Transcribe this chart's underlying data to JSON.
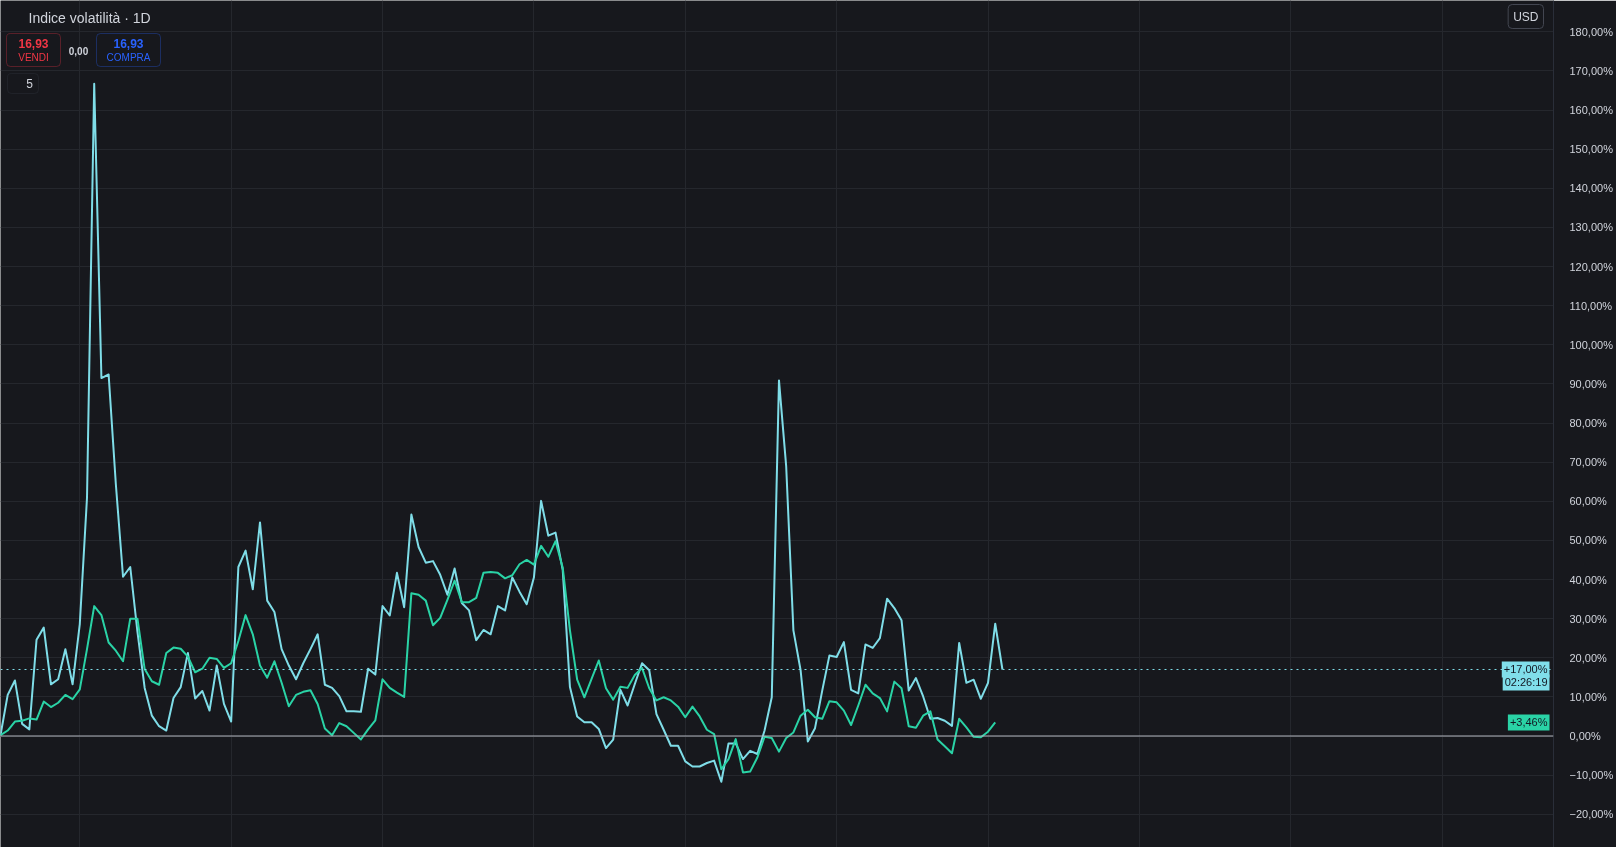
{
  "chart_data": {
    "type": "line",
    "title": "Indice volatilità · 1D",
    "categories": [
      null,
      null,
      null,
      null,
      null,
      null,
      null,
      null,
      null,
      null,
      null,
      null,
      null,
      null,
      null,
      null,
      null,
      null,
      null,
      null,
      null,
      null,
      null,
      null,
      null,
      null,
      null,
      null,
      null,
      null,
      null,
      null,
      null,
      null,
      null,
      null,
      null,
      null,
      null,
      null,
      null,
      null,
      null,
      null,
      null,
      null,
      null,
      null,
      null,
      null,
      null,
      null,
      null,
      null,
      null,
      null,
      null,
      null,
      null,
      null,
      null,
      null,
      null,
      null,
      null,
      null,
      null,
      null,
      null,
      null,
      null,
      null,
      null,
      null,
      null,
      null,
      null,
      null,
      null,
      null,
      null,
      null,
      null,
      null,
      null,
      null,
      null,
      null,
      null,
      null,
      null,
      null,
      null,
      null,
      null,
      null,
      null,
      null,
      null,
      null,
      null,
      null,
      null,
      null,
      null,
      null,
      null,
      null,
      null,
      null,
      null,
      null,
      null,
      null,
      null,
      null,
      null,
      null,
      null,
      null,
      null,
      null,
      null,
      null,
      null,
      null,
      null,
      null,
      null,
      null,
      null,
      null,
      null,
      null,
      null,
      null,
      null,
      null,
      null,
      null
    ],
    "series": [
      {
        "color": "#7fdde8",
        "values": [
          0.2,
          10.5,
          14.2,
          3.1,
          1.7,
          24.6,
          27.7,
          13.2,
          14.5,
          22.2,
          13.2,
          28.6,
          60.9,
          166.7,
          91.5,
          92.4,
          64.4,
          40.7,
          43.2,
          26.6,
          12.3,
          5.2,
          2.5,
          1.4,
          9.7,
          12.5,
          21.2,
          9.6,
          11.5,
          6.5,
          18.0,
          8.2,
          3.7,
          43.2,
          47.4,
          37.5,
          54.6,
          34.6,
          31.7,
          22.2,
          18.0,
          14.5,
          18.6,
          22.2,
          26.0,
          13.1,
          12.3,
          10.2,
          6.3,
          6.3,
          6.2,
          17.2,
          15.7,
          33.2,
          30.8,
          41.7,
          32.9,
          56.6,
          48.3,
          44.3,
          44.7,
          41.2,
          36.1,
          42.8,
          34.0,
          32.1,
          24.5,
          27.1,
          26.0,
          33.2,
          32.1,
          40.5,
          36.9,
          33.7,
          40.5,
          60.1,
          51.2,
          52.0,
          42.4,
          12.5,
          5.0,
          3.5,
          3.5,
          1.8,
          -3.1,
          -0.9,
          11.8,
          7.8,
          13.3,
          18.6,
          16.8,
          5.6,
          1.6,
          -2.5,
          -2.5,
          -6.5,
          -7.8,
          -7.8,
          -6.9,
          -6.3,
          -11.7,
          -1.9,
          -1.9,
          -5.9,
          -3.8,
          -4.6,
          1.4,
          9.9,
          90.9,
          68.9,
          27.0,
          16.8,
          -1.4,
          2.0,
          11.6,
          20.6,
          20.2,
          24.0,
          11.8,
          10.9,
          23.4,
          22.5,
          25.0,
          35.1,
          32.7,
          29.6,
          11.6,
          14.8,
          10.1,
          4.4,
          4.6,
          3.9,
          2.6,
          23.8,
          13.6,
          14.4,
          9.5,
          13.6,
          28.7,
          17.0
        ]
      },
      {
        "color": "#2ad3a6",
        "values": [
          0.2,
          1.4,
          3.7,
          3.9,
          4.5,
          4.2,
          8.8,
          7.4,
          8.5,
          10.5,
          9.4,
          11.9,
          22.2,
          33.2,
          30.9,
          23.9,
          21.8,
          19.1,
          30.0,
          30.0,
          17.1,
          14.0,
          13.1,
          21.2,
          22.6,
          22.3,
          20.3,
          16.3,
          17.2,
          20.0,
          19.7,
          17.4,
          18.6,
          24.3,
          30.9,
          26.0,
          18.0,
          14.9,
          19.1,
          13.6,
          7.6,
          10.5,
          11.3,
          11.7,
          8.2,
          1.9,
          0.2,
          3.3,
          2.5,
          0.8,
          -0.9,
          1.7,
          4.0,
          14.5,
          12.3,
          11.1,
          10.0,
          36.5,
          36.1,
          34.6,
          28.3,
          30.2,
          34.8,
          39.7,
          34.2,
          34.2,
          35.3,
          41.7,
          41.9,
          41.7,
          40.3,
          41.1,
          43.9,
          45.0,
          43.8,
          48.6,
          45.8,
          49.8,
          43.0,
          27.0,
          14.4,
          9.9,
          14.6,
          19.3,
          12.2,
          9.3,
          12.6,
          12.3,
          15.6,
          17.4,
          12.2,
          9.1,
          9.9,
          9.1,
          7.5,
          4.8,
          7.5,
          5.0,
          1.6,
          0.5,
          -8.5,
          -5.9,
          -0.8,
          -9.3,
          -9.1,
          -5.5,
          -0.2,
          -0.5,
          -4.0,
          -0.5,
          0.9,
          5.2,
          6.7,
          4.8,
          4.4,
          8.9,
          8.6,
          6.5,
          2.8,
          7.8,
          13.1,
          10.9,
          9.7,
          6.3,
          13.9,
          12.2,
          2.5,
          2.1,
          5.2,
          6.3,
          -0.9,
          -2.6,
          -4.4,
          4.4,
          2.2,
          -0.2,
          -0.3,
          1.1,
          3.46,
          null
        ]
      }
    ],
    "ylim": [
      -28.5,
      188
    ],
    "yticks": [
      {
        "value": -20,
        "label": "−20,00%"
      },
      {
        "value": -10,
        "label": "−10,00%"
      },
      {
        "value": 0,
        "label": "0,00%"
      },
      {
        "value": 10,
        "label": "10,00%"
      },
      {
        "value": 20,
        "label": "20,00%"
      },
      {
        "value": 30,
        "label": "30,00%"
      },
      {
        "value": 40,
        "label": "40,00%"
      },
      {
        "value": 50,
        "label": "50,00%"
      },
      {
        "value": 60,
        "label": "60,00%"
      },
      {
        "value": 70,
        "label": "70,00%"
      },
      {
        "value": 80,
        "label": "80,00%"
      },
      {
        "value": 90,
        "label": "90,00%"
      },
      {
        "value": 100,
        "label": "100,00%"
      },
      {
        "value": 110,
        "label": "110,00%"
      },
      {
        "value": 120,
        "label": "120,00%"
      },
      {
        "value": 130,
        "label": "130,00%"
      },
      {
        "value": 140,
        "label": "140,00%"
      },
      {
        "value": 150,
        "label": "150,00%"
      },
      {
        "value": 160,
        "label": "160,00%"
      },
      {
        "value": 170,
        "label": "170,00%"
      },
      {
        "value": 180,
        "label": "180,00%"
      }
    ],
    "grid": true,
    "tick_labels": "y",
    "line_style": "solid",
    "ref_lines": [
      {
        "axis": "y",
        "value": 0,
        "color": "#b2b5be",
        "line_style": "solid"
      },
      {
        "axis": "y",
        "value": 17,
        "label": "+17,00%",
        "color": "#80deea",
        "line_style": "dotted"
      }
    ],
    "annotations": [
      "16,93",
      "VENDI",
      "0,00",
      "16,93",
      "COMPRA",
      "5",
      "USD",
      "02:26:19",
      "+3,46%"
    ]
  }
}
